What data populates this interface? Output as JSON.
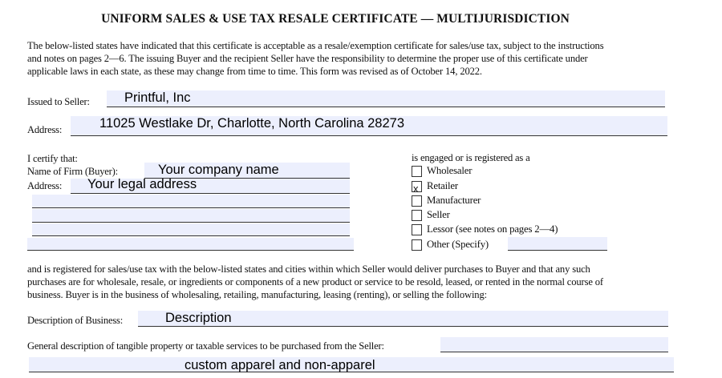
{
  "title": "UNIFORM SALES & USE TAX RESALE CERTIFICATE — MULTIJURISDICTION",
  "intro_lines": [
    "The below-listed states have indicated that this certificate is acceptable as a resale/exemption certificate for sales/use tax, subject to the instructions",
    "and notes on pages 2—6. The issuing Buyer and the recipient Seller have the responsibility to determine the proper use of this certificate under",
    "applicable laws in each state, as these may change from time to time. This form was revised as of October 14, 2022."
  ],
  "seller": {
    "issued_label": "Issued to Seller:",
    "issued_value": "Printful, Inc",
    "address_label": "Address:",
    "address_value": "11025 Westlake Dr, Charlotte, North Carolina 28273"
  },
  "buyer": {
    "certify_label": "I certify that:",
    "firm_label": "Name of Firm (Buyer):",
    "firm_value": "Your company name",
    "address_label": "Address:",
    "address_value": "Your legal address",
    "extra_address_lines": [
      "",
      "",
      "",
      ""
    ]
  },
  "registration": {
    "heading": "is engaged or is registered as a",
    "options": [
      {
        "label": "Wholesaler",
        "checked": false
      },
      {
        "label": "Retailer",
        "checked": true,
        "mark": "x"
      },
      {
        "label": "Manufacturer",
        "checked": false
      },
      {
        "label": "Seller",
        "checked": false
      },
      {
        "label": "Lessor (see notes on pages 2—4)",
        "checked": false
      },
      {
        "label": "Other (Specify)",
        "checked": false
      }
    ],
    "other_value": ""
  },
  "body_lines": [
    "and is registered for sales/use tax with the below-listed states and cities within which Seller would deliver purchases to Buyer and that any such",
    "purchases are for wholesale, resale, or ingredients or components of a new product or service to be resold, leased, or rented in the normal course of",
    "business. Buyer is in the business of wholesaling, retailing, manufacturing, leasing (renting), or selling the following:"
  ],
  "business": {
    "description_label": "Description of Business:",
    "description_value": "Description",
    "general_label": "General description of tangible property or taxable services to be purchased from the Seller:",
    "general_value": "",
    "general_value_line2": "custom apparel and non-apparel"
  }
}
